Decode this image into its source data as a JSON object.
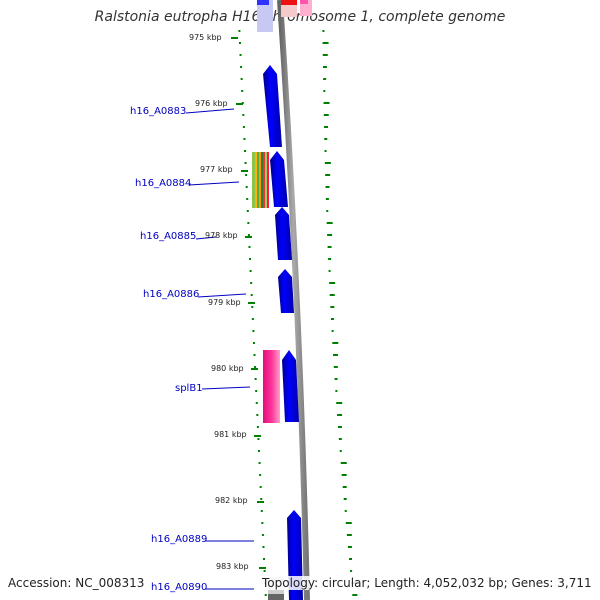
{
  "title": "Ralstonia eutropha H16 chromosome 1, complete genome",
  "footer": {
    "accession": "Accession: NC_008313",
    "topology": "Topology: circular; Length: 4,052,032 bp; Genes: 3,711"
  },
  "ticks": [
    "975 kbp",
    "976 kbp",
    "977 kbp",
    "978 kbp",
    "979 kbp",
    "980 kbp",
    "981 kbp",
    "982 kbp",
    "983 kbp"
  ],
  "genes": [
    "h16_A0883",
    "h16_A0884",
    "h16_A0885",
    "h16_A0886",
    "splB1",
    "h16_A0889",
    "h16_A0890"
  ],
  "colors": {
    "cds": "#0000ee",
    "rna": "#ff2a8a",
    "backbone": "#888888",
    "gc_skew": "#008000",
    "label": "#0000c0"
  }
}
